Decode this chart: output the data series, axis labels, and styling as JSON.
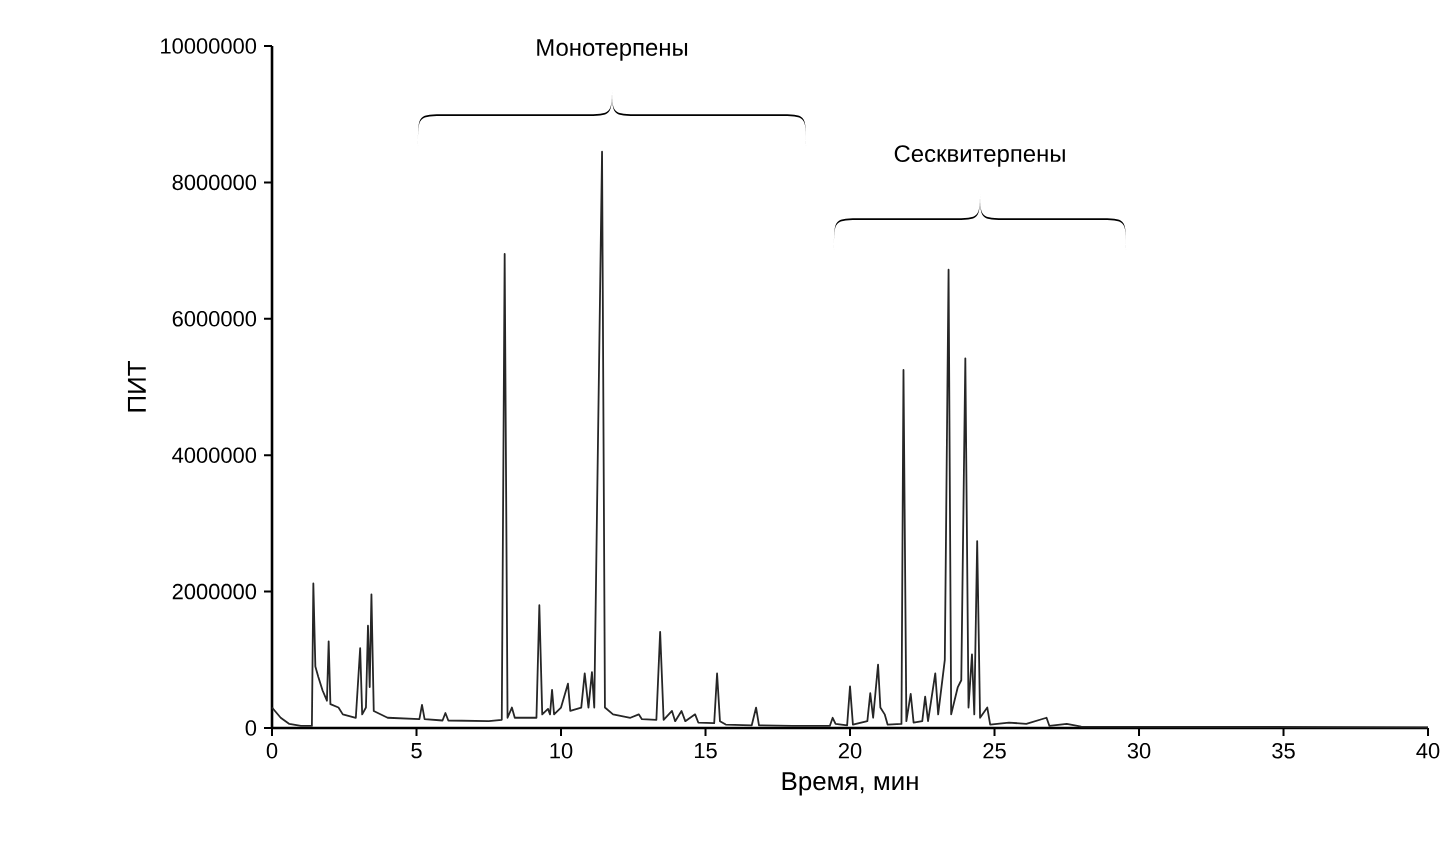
{
  "chart_data": {
    "type": "line",
    "xlabel": "Время, мин",
    "ylabel": "ПИТ",
    "xlim": [
      0,
      40
    ],
    "xticks": [
      0,
      5,
      10,
      15,
      20,
      25,
      30,
      35,
      40
    ],
    "ylim": [
      0,
      10000000
    ],
    "yticks": [
      0,
      2000000,
      4000000,
      6000000,
      8000000,
      10000000
    ],
    "grid": false,
    "marker": "none",
    "line_style": "solid",
    "annotations": [
      "Монотерпены",
      "Сесквитерпены"
    ],
    "series": [
      {
        "color": "#262626",
        "x": [
          0,
          0.3,
          0.6,
          1.0,
          1.38,
          1.43,
          1.5,
          1.6,
          1.75,
          1.9,
          1.96,
          2.02,
          2.3,
          2.45,
          2.9,
          3.05,
          3.12,
          3.25,
          3.32,
          3.38,
          3.44,
          3.52,
          4.0,
          5.1,
          5.19,
          5.28,
          5.9,
          6.0,
          6.1,
          7.5,
          7.95,
          8.05,
          8.15,
          8.3,
          8.4,
          9.15,
          9.25,
          9.35,
          9.55,
          9.62,
          9.69,
          9.76,
          10.0,
          10.24,
          10.32,
          10.7,
          10.82,
          10.95,
          11.07,
          11.15,
          11.42,
          11.52,
          11.8,
          12.4,
          12.69,
          12.8,
          13.3,
          13.43,
          13.55,
          13.84,
          13.95,
          14.17,
          14.3,
          14.64,
          14.75,
          15.3,
          15.4,
          15.5,
          15.7,
          16.6,
          16.75,
          16.85,
          18,
          19.3,
          19.4,
          19.5,
          19.9,
          20.0,
          20.1,
          20.6,
          20.7,
          20.8,
          20.97,
          21.05,
          21.2,
          21.3,
          21.78,
          21.85,
          21.95,
          22.1,
          22.2,
          22.5,
          22.6,
          22.7,
          22.95,
          23.05,
          23.28,
          23.41,
          23.5,
          23.73,
          23.85,
          23.99,
          24.1,
          24.22,
          24.3,
          24.4,
          24.5,
          24.75,
          24.85,
          25.5,
          26.1,
          26.8,
          26.9,
          27.5,
          28,
          40
        ],
        "values": [
          300000,
          150000,
          60000,
          30000,
          30000,
          2120000,
          900000,
          750000,
          550000,
          400000,
          1270000,
          350000,
          300000,
          200000,
          150000,
          1170000,
          200000,
          300000,
          1500000,
          600000,
          1960000,
          250000,
          150000,
          130000,
          340000,
          130000,
          110000,
          220000,
          110000,
          100000,
          120000,
          6950000,
          150000,
          300000,
          150000,
          150000,
          1800000,
          200000,
          280000,
          200000,
          560000,
          200000,
          300000,
          650000,
          250000,
          300000,
          800000,
          300000,
          820000,
          300000,
          8450000,
          300000,
          200000,
          150000,
          200000,
          130000,
          120000,
          1410000,
          120000,
          250000,
          100000,
          250000,
          100000,
          200000,
          80000,
          70000,
          800000,
          100000,
          50000,
          40000,
          300000,
          40000,
          30000,
          30000,
          150000,
          60000,
          40000,
          610000,
          50000,
          100000,
          510000,
          150000,
          930000,
          300000,
          200000,
          50000,
          60000,
          5250000,
          100000,
          500000,
          80000,
          100000,
          460000,
          100000,
          800000,
          200000,
          1000000,
          6720000,
          200000,
          600000,
          700000,
          5420000,
          300000,
          1080000,
          200000,
          2740000,
          150000,
          300000,
          50000,
          80000,
          60000,
          150000,
          30000,
          60000,
          20000,
          10000
        ]
      }
    ]
  }
}
